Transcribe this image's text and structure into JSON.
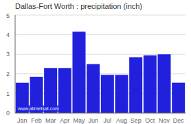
{
  "chart_data": {
    "type": "bar",
    "title": "Dallas-Fort Worth : precipitation (inch)",
    "categories": [
      "Jan",
      "Feb",
      "Mar",
      "Apr",
      "May",
      "Jun",
      "Jul",
      "Aug",
      "Sep",
      "Oct",
      "Nov",
      "Dec"
    ],
    "values": [
      1.55,
      1.85,
      2.3,
      2.3,
      4.15,
      2.5,
      1.95,
      1.95,
      2.85,
      2.95,
      3.0,
      1.55
    ],
    "color": "#2020dd",
    "ylim": [
      0,
      5
    ],
    "yticks": [
      0,
      1,
      2,
      3,
      4,
      5
    ],
    "grid": true,
    "annotation": "www.allmetsat.com"
  }
}
